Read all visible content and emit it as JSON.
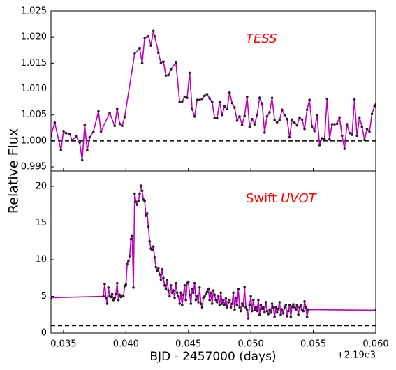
{
  "ylabel": "Relative Flux",
  "chart_data": [
    {
      "type": "line",
      "annotation": {
        "italic": "TESS"
      },
      "color": "#bf00bf",
      "marker_color": "#222222",
      "xlim": [
        0.034,
        0.06
      ],
      "ylim": [
        0.9942,
        1.025
      ],
      "yticks": [
        0.995,
        {
          "value": 1.0,
          "label": "1.000"
        },
        1.005,
        {
          "value": 1.01,
          "label": "1.010"
        },
        1.015,
        {
          "value": 1.02,
          "label": "1.020"
        },
        1.025
      ],
      "hline": 1.0,
      "x": [
        0.034,
        0.0343,
        0.0348,
        0.035,
        0.0352,
        0.0355,
        0.0357,
        0.036,
        0.0363,
        0.0365,
        0.0367,
        0.0369,
        0.0371,
        0.0374,
        0.0378,
        0.038,
        0.0387,
        0.0391,
        0.0393,
        0.0395,
        0.0397,
        0.0399,
        0.0407,
        0.0411,
        0.0413,
        0.0415,
        0.0418,
        0.042,
        0.0422,
        0.0423,
        0.0426,
        0.0428,
        0.043,
        0.0432,
        0.0434,
        0.0436,
        0.044,
        0.0443,
        0.0445,
        0.0447,
        0.0449,
        0.0451,
        0.0453,
        0.0455,
        0.0457,
        0.0459,
        0.0461,
        0.0463,
        0.0465,
        0.0467,
        0.0469,
        0.0471,
        0.0473,
        0.0475,
        0.0477,
        0.0479,
        0.0481,
        0.0483,
        0.0485,
        0.0487,
        0.0489,
        0.0491,
        0.0493,
        0.0495,
        0.0497,
        0.0499,
        0.0501,
        0.0503,
        0.0505,
        0.0507,
        0.0509,
        0.0511,
        0.0513,
        0.0515,
        0.0517,
        0.0519,
        0.0521,
        0.0523,
        0.0525,
        0.0527,
        0.0529,
        0.0531,
        0.0533,
        0.0535,
        0.0537,
        0.0539,
        0.0541,
        0.0543,
        0.0545,
        0.0547,
        0.0549,
        0.0551,
        0.0553,
        0.0555,
        0.0557,
        0.0559,
        0.0561,
        0.0563,
        0.0565,
        0.0567,
        0.0569,
        0.0571,
        0.0573,
        0.0575,
        0.0577,
        0.0579,
        0.0581,
        0.0583,
        0.0585,
        0.0587,
        0.0589,
        0.0591,
        0.0593,
        0.0595,
        0.0597,
        0.0599,
        0.06
      ],
      "values": [
        1.001,
        1.0035,
        0.9982,
        1.0019,
        1.0015,
        1.0013,
        1.0001,
        1.0009,
        0.9997,
        0.9963,
        1.0031,
        0.9982,
        1.0007,
        1.0018,
        1.0057,
        1.0018,
        1.0054,
        1.0029,
        1.0062,
        1.0033,
        1.0029,
        1.0046,
        1.0168,
        1.0178,
        1.015,
        1.0198,
        1.0202,
        1.0184,
        1.0212,
        1.0202,
        1.017,
        1.015,
        1.0153,
        1.0126,
        1.0127,
        1.0138,
        1.0151,
        1.0075,
        1.0076,
        1.0085,
        1.0083,
        1.0131,
        1.0061,
        1.0047,
        1.0079,
        1.0079,
        1.0081,
        1.0087,
        1.009,
        1.0082,
        1.0075,
        1.0044,
        1.0044,
        1.0075,
        1.005,
        1.0067,
        1.0062,
        1.0093,
        1.0073,
        1.0064,
        1.0039,
        1.0047,
        1.0031,
        1.0048,
        1.0085,
        1.0027,
        1.0042,
        1.0032,
        1.005,
        1.0083,
        1.0072,
        1.0016,
        1.0047,
        1.0055,
        1.0083,
        1.004,
        1.0036,
        1.004,
        1.006,
        1.005,
        1.0042,
        1.0007,
        1.0041,
        1.0035,
        1.003,
        1.0045,
        1.0041,
        1.0023,
        1.006,
        1.0079,
        1.0028,
        1.0019,
        1.005,
        0.9992,
        1.0005,
        1.0004,
        1.0081,
        1.0003,
        1.0032,
        1.0032,
        1.0033,
        1.0045,
        1.001,
        0.9985,
        1.0032,
        1.0015,
        1.0012,
        1.008,
        1.001,
        1.0045,
        1.0027,
        1.0002,
        1.0023,
        1.0018,
        1.0052,
        1.0067,
        1.007
      ]
    },
    {
      "type": "line",
      "annotation": {
        "text": "Swift",
        "italic": "UVOT"
      },
      "color": "#bf00bf",
      "marker_color": "#222222",
      "xlim": [
        0.034,
        0.06
      ],
      "ylim": [
        0,
        22.1
      ],
      "yticks": [
        0,
        5,
        10,
        15,
        20
      ],
      "hline": 1,
      "xticks": [
        0.035,
        {
          "value": 0.04,
          "label": "0.040"
        },
        0.045,
        {
          "value": 0.05,
          "label": "0.050"
        },
        0.055,
        {
          "value": 0.06,
          "label": "0.060"
        }
      ],
      "xlabel": "BJD - 2457000 (days)",
      "x_offset": "+2.19e3",
      "x": [
        0.034,
        0.0382,
        0.0383,
        0.0384,
        0.0385,
        0.0386,
        0.0387,
        0.0388,
        0.0389,
        0.039,
        0.0391,
        0.0392,
        0.0393,
        0.0394,
        0.0395,
        0.0396,
        0.0397,
        0.0398,
        0.0399,
        0.04,
        0.0401,
        0.0402,
        0.0403,
        0.0404,
        0.0405,
        0.0406,
        0.0407,
        0.0408,
        0.0409,
        0.041,
        0.0411,
        0.0412,
        0.0413,
        0.0414,
        0.0415,
        0.0416,
        0.0417,
        0.0418,
        0.0419,
        0.042,
        0.0421,
        0.0422,
        0.0423,
        0.0424,
        0.0425,
        0.0426,
        0.0427,
        0.0428,
        0.0429,
        0.043,
        0.0431,
        0.0432,
        0.0433,
        0.0434,
        0.0435,
        0.0436,
        0.0437,
        0.0438,
        0.0439,
        0.044,
        0.0441,
        0.0442,
        0.0443,
        0.0444,
        0.0445,
        0.0446,
        0.0447,
        0.0448,
        0.0449,
        0.045,
        0.0451,
        0.0452,
        0.0453,
        0.0454,
        0.0455,
        0.0456,
        0.0457,
        0.0458,
        0.0459,
        0.046,
        0.0461,
        0.0462,
        0.0463,
        0.0464,
        0.0465,
        0.0466,
        0.0467,
        0.0468,
        0.0469,
        0.047,
        0.0471,
        0.0472,
        0.0473,
        0.0474,
        0.0475,
        0.0476,
        0.0477,
        0.0478,
        0.0479,
        0.048,
        0.0481,
        0.0482,
        0.0483,
        0.0484,
        0.0485,
        0.0486,
        0.0487,
        0.0488,
        0.0489,
        0.049,
        0.0491,
        0.0492,
        0.0493,
        0.0494,
        0.0495,
        0.0496,
        0.0497,
        0.0498,
        0.0499,
        0.05,
        0.0501,
        0.0502,
        0.0503,
        0.0504,
        0.0505,
        0.0506,
        0.0507,
        0.0508,
        0.0509,
        0.051,
        0.0511,
        0.0512,
        0.0513,
        0.0514,
        0.0515,
        0.0516,
        0.0517,
        0.0518,
        0.0519,
        0.052,
        0.0521,
        0.0522,
        0.0523,
        0.0524,
        0.0525,
        0.0526,
        0.0527,
        0.0528,
        0.0529,
        0.053,
        0.0531,
        0.0532,
        0.0533,
        0.0534,
        0.0535,
        0.0536,
        0.0537,
        0.0538,
        0.0539,
        0.054,
        0.0541,
        0.0542,
        0.0543,
        0.0544,
        0.0545,
        0.0546,
        0.06
      ],
      "values": [
        4.8,
        5.0,
        6.7,
        4.8,
        4.0,
        6.2,
        5.0,
        4.9,
        5.3,
        4.5,
        4.8,
        5.3,
        6.8,
        4.5,
        5.2,
        4.9,
        5.1,
        5.0,
        6.4,
        6.6,
        9.4,
        9.8,
        10.5,
        12.8,
        13.3,
        6.2,
        19.0,
        17.9,
        17.5,
        18.0,
        19.0,
        20.1,
        19.4,
        18.2,
        18.0,
        16.0,
        16.3,
        14.5,
        12.5,
        11.5,
        11.3,
        11.8,
        10.3,
        9.0,
        8.5,
        8.8,
        8.0,
        7.3,
        8.7,
        7.5,
        6.5,
        6.0,
        7.2,
        5.8,
        5.0,
        6.5,
        5.5,
        5.8,
        4.8,
        6.8,
        5.5,
        5.0,
        4.0,
        5.5,
        3.8,
        5.2,
        6.5,
        4.5,
        6.8,
        7.0,
        5.2,
        4.0,
        6.0,
        5.5,
        6.8,
        4.5,
        5.0,
        4.2,
        6.2,
        4.0,
        3.5,
        4.8,
        5.0,
        5.3,
        5.6,
        6.0,
        4.5,
        5.5,
        4.0,
        5.8,
        5.2,
        4.5,
        4.2,
        5.0,
        3.8,
        5.5,
        4.0,
        4.5,
        3.8,
        4.7,
        3.5,
        4.2,
        4.5,
        3.5,
        4.0,
        5.5,
        3.2,
        4.8,
        3.8,
        6.0,
        3.5,
        3.0,
        4.0,
        3.7,
        6.3,
        3.5,
        3.2,
        2.0,
        3.8,
        5.0,
        3.0,
        4.5,
        3.2,
        3.5,
        3.0,
        4.5,
        2.5,
        3.8,
        3.3,
        3.5,
        2.8,
        4.2,
        3.0,
        2.6,
        3.2,
        2.8,
        4.0,
        3.5,
        2.2,
        3.5,
        2.8,
        3.3,
        4.2,
        2.5,
        3.2,
        2.7,
        3.5,
        3.8,
        2.3,
        3.0,
        3.8,
        2.2,
        3.6,
        3.9,
        3.5,
        3.2,
        3.8,
        2.5,
        3.5,
        3.8,
        3.2,
        3.0,
        4.3,
        3.5,
        2.2,
        3.2,
        3.1
      ]
    }
  ]
}
